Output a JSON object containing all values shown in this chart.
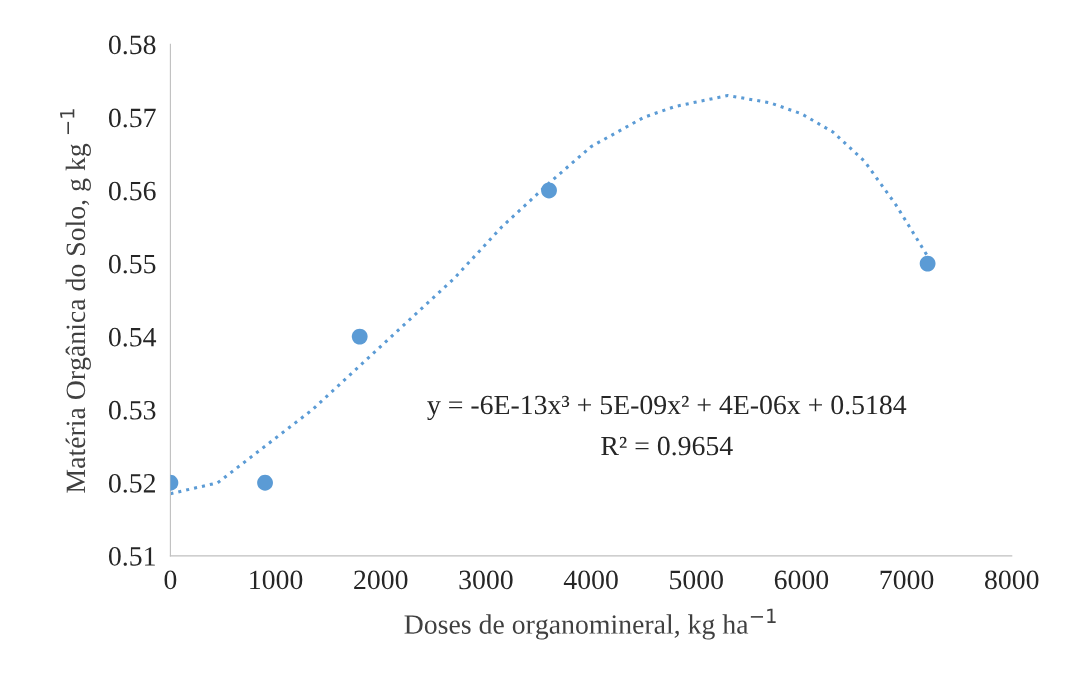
{
  "chart_data": {
    "type": "scatter",
    "xlabel": "Doses de organomineral, kg ha$^{−1}$",
    "ylabel": "Matéria Orgânica do Solo, g kg $^{−1}$",
    "x": [
      0,
      900,
      1800,
      3600,
      7200
    ],
    "series": [
      {
        "color": "#5b9bd5",
        "marker": "circle",
        "values": [
          0.52,
          0.52,
          0.54,
          0.56,
          0.55
        ]
      },
      {
        "type": "line",
        "color": "#5b9bd5",
        "marker": "none",
        "line_style": "dotted",
        "x": [
          0,
          450,
          900,
          1350,
          1800,
          2250,
          2700,
          3150,
          3600,
          4000,
          4500,
          4800,
          5300,
          5700,
          6000,
          6300,
          6600,
          6900,
          7200
        ],
        "values": [
          0.5185,
          0.52,
          0.525,
          0.53,
          0.536,
          0.542,
          0.548,
          0.555,
          0.561,
          0.566,
          0.57,
          0.5715,
          0.573,
          0.572,
          0.5705,
          0.568,
          0.564,
          0.558,
          0.551
        ]
      }
    ],
    "annotations": [
      {
        "text": "y = -6E-13x³ + 5E-09x² + 4E-06x + 0.5184"
      },
      {
        "text": "R² = 0.9654"
      }
    ],
    "xlim": [
      0,
      8000
    ],
    "xticks": [
      0,
      1000,
      2000,
      3000,
      4000,
      5000,
      6000,
      7000,
      8000
    ],
    "ylim": [
      0.51,
      0.58
    ],
    "yticks": [
      0.51,
      0.52,
      0.53,
      0.54,
      0.55,
      0.56,
      0.57,
      0.58
    ],
    "grid": false,
    "legend": false
  }
}
